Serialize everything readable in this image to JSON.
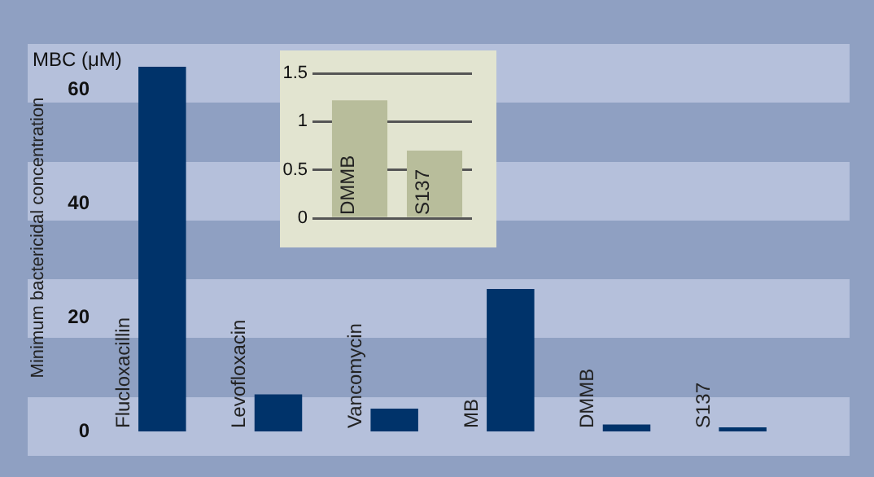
{
  "chart_data": [
    {
      "type": "bar",
      "categories": [
        "Flucloxacillin",
        "Levofloxacin",
        "Vancomycin",
        "MB",
        "DMMB",
        "S137"
      ],
      "values": [
        64,
        6.5,
        4,
        25,
        1.2,
        0.7
      ],
      "color": "#00336a",
      "ylim": [
        0,
        68
      ],
      "yticks": [
        0,
        20,
        40,
        60
      ],
      "grid": false,
      "ylabel": "Minimum bactericidal concentration",
      "annotations": [
        "MBC (μM)"
      ]
    },
    {
      "type": "bar",
      "categories": [
        "DMMB",
        "S137"
      ],
      "values": [
        1.22,
        0.7
      ],
      "color": "#b8bd9b",
      "ylim": [
        0,
        1.5
      ],
      "yticks": [
        0,
        0.5,
        1,
        1.5
      ],
      "grid": "y"
    }
  ]
}
